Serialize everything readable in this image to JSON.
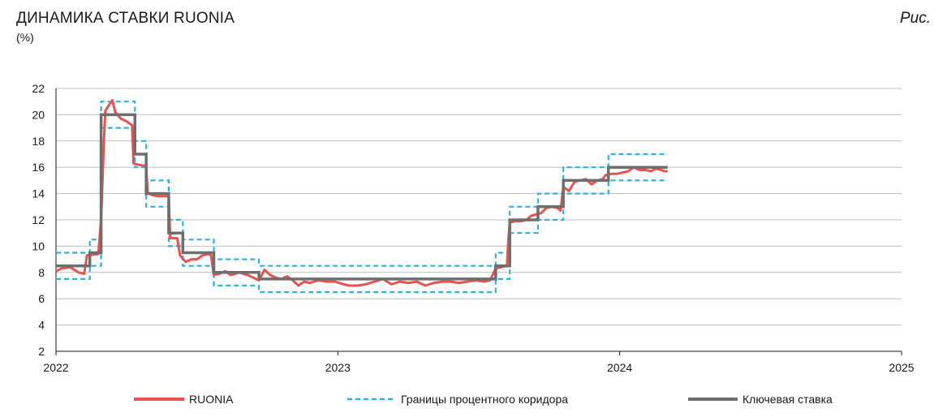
{
  "header": {
    "title": "ДИНАМИКА СТАВКИ RUONIA",
    "unit": "(%)",
    "figure_label": "Рис."
  },
  "chart_data": {
    "type": "line",
    "title": "ДИНАМИКА СТАВКИ RUONIA",
    "ylabel": "(%)",
    "xlabel": "",
    "xlim": [
      2022,
      2025
    ],
    "ylim": [
      2,
      22
    ],
    "x_ticks": [
      "2022",
      "2023",
      "2024",
      "2025"
    ],
    "y_ticks": [
      2,
      4,
      6,
      8,
      10,
      12,
      14,
      16,
      18,
      20,
      22
    ],
    "grid": "horizontal",
    "legend_position": "bottom",
    "series": [
      {
        "name": "RUONIA",
        "color": "#e8524f",
        "style": "solid",
        "points": [
          [
            2022.0,
            8.1
          ],
          [
            2022.02,
            8.3
          ],
          [
            2022.05,
            8.4
          ],
          [
            2022.08,
            8.0
          ],
          [
            2022.1,
            7.9
          ],
          [
            2022.11,
            9.3
          ],
          [
            2022.15,
            9.4
          ],
          [
            2022.16,
            12.0
          ],
          [
            2022.17,
            18.0
          ],
          [
            2022.175,
            20.3
          ],
          [
            2022.19,
            20.8
          ],
          [
            2022.2,
            21.1
          ],
          [
            2022.21,
            20.2
          ],
          [
            2022.23,
            19.7
          ],
          [
            2022.25,
            19.5
          ],
          [
            2022.27,
            19.2
          ],
          [
            2022.275,
            16.3
          ],
          [
            2022.29,
            16.2
          ],
          [
            2022.32,
            16.1
          ],
          [
            2022.325,
            14.1
          ],
          [
            2022.34,
            13.9
          ],
          [
            2022.36,
            13.8
          ],
          [
            2022.4,
            13.8
          ],
          [
            2022.405,
            10.6
          ],
          [
            2022.43,
            10.6
          ],
          [
            2022.44,
            9.3
          ],
          [
            2022.46,
            8.8
          ],
          [
            2022.48,
            9.0
          ],
          [
            2022.5,
            9.0
          ],
          [
            2022.52,
            9.3
          ],
          [
            2022.54,
            9.4
          ],
          [
            2022.55,
            9.3
          ],
          [
            2022.56,
            7.8
          ],
          [
            2022.58,
            7.9
          ],
          [
            2022.6,
            8.1
          ],
          [
            2022.62,
            7.8
          ],
          [
            2022.65,
            8.0
          ],
          [
            2022.68,
            7.8
          ],
          [
            2022.7,
            7.6
          ],
          [
            2022.72,
            7.4
          ],
          [
            2022.74,
            8.2
          ],
          [
            2022.76,
            7.8
          ],
          [
            2022.78,
            7.6
          ],
          [
            2022.8,
            7.5
          ],
          [
            2022.82,
            7.7
          ],
          [
            2022.84,
            7.4
          ],
          [
            2022.86,
            7.0
          ],
          [
            2022.88,
            7.3
          ],
          [
            2022.9,
            7.2
          ],
          [
            2022.93,
            7.4
          ],
          [
            2022.96,
            7.3
          ],
          [
            2022.99,
            7.3
          ],
          [
            2023.02,
            7.1
          ],
          [
            2023.04,
            7.0
          ],
          [
            2023.07,
            7.0
          ],
          [
            2023.1,
            7.1
          ],
          [
            2023.13,
            7.3
          ],
          [
            2023.16,
            7.5
          ],
          [
            2023.19,
            7.1
          ],
          [
            2023.22,
            7.3
          ],
          [
            2023.25,
            7.2
          ],
          [
            2023.28,
            7.3
          ],
          [
            2023.31,
            7.0
          ],
          [
            2023.34,
            7.2
          ],
          [
            2023.37,
            7.3
          ],
          [
            2023.4,
            7.3
          ],
          [
            2023.43,
            7.2
          ],
          [
            2023.46,
            7.3
          ],
          [
            2023.49,
            7.4
          ],
          [
            2023.52,
            7.3
          ],
          [
            2023.54,
            7.4
          ],
          [
            2023.56,
            8.3
          ],
          [
            2023.58,
            8.4
          ],
          [
            2023.6,
            8.5
          ],
          [
            2023.605,
            10.5
          ],
          [
            2023.61,
            11.8
          ],
          [
            2023.63,
            11.9
          ],
          [
            2023.65,
            11.9
          ],
          [
            2023.67,
            12.0
          ],
          [
            2023.685,
            12.3
          ],
          [
            2023.7,
            12.4
          ],
          [
            2023.72,
            12.5
          ],
          [
            2023.74,
            12.9
          ],
          [
            2023.76,
            13.0
          ],
          [
            2023.78,
            12.9
          ],
          [
            2023.79,
            12.7
          ],
          [
            2023.8,
            14.5
          ],
          [
            2023.82,
            14.2
          ],
          [
            2023.84,
            14.9
          ],
          [
            2023.86,
            15.0
          ],
          [
            2023.88,
            15.1
          ],
          [
            2023.9,
            14.7
          ],
          [
            2023.92,
            15.0
          ],
          [
            2023.94,
            15.1
          ],
          [
            2023.95,
            15.4
          ],
          [
            2023.97,
            15.5
          ],
          [
            2023.99,
            15.5
          ],
          [
            2024.01,
            15.6
          ],
          [
            2024.03,
            15.7
          ],
          [
            2024.05,
            16.0
          ],
          [
            2024.07,
            15.8
          ],
          [
            2024.09,
            15.8
          ],
          [
            2024.11,
            15.7
          ],
          [
            2024.13,
            15.9
          ],
          [
            2024.16,
            15.7
          ],
          [
            2024.17,
            15.7
          ]
        ]
      },
      {
        "name": "Границы процентного коридора",
        "color": "#29b4e6",
        "style": "dashed",
        "upper_steps": [
          [
            2022.0,
            9.5
          ],
          [
            2022.12,
            10.5
          ],
          [
            2022.16,
            21.0
          ],
          [
            2022.28,
            18.0
          ],
          [
            2022.32,
            15.0
          ],
          [
            2022.4,
            12.0
          ],
          [
            2022.45,
            10.5
          ],
          [
            2022.56,
            9.0
          ],
          [
            2022.72,
            8.5
          ],
          [
            2023.56,
            9.5
          ],
          [
            2023.61,
            13.0
          ],
          [
            2023.71,
            14.0
          ],
          [
            2023.8,
            16.0
          ],
          [
            2023.96,
            17.0
          ],
          [
            2024.17,
            17.0
          ]
        ],
        "lower_steps": [
          [
            2022.0,
            7.5
          ],
          [
            2022.12,
            8.5
          ],
          [
            2022.16,
            19.0
          ],
          [
            2022.28,
            16.0
          ],
          [
            2022.32,
            13.0
          ],
          [
            2022.4,
            10.0
          ],
          [
            2022.45,
            8.5
          ],
          [
            2022.56,
            7.0
          ],
          [
            2022.72,
            6.5
          ],
          [
            2023.56,
            7.5
          ],
          [
            2023.61,
            11.0
          ],
          [
            2023.71,
            12.0
          ],
          [
            2023.8,
            14.0
          ],
          [
            2023.96,
            15.0
          ],
          [
            2024.17,
            15.0
          ]
        ]
      },
      {
        "name": "Ключевая ставка",
        "color": "#6e6e6e",
        "style": "solid",
        "steps": [
          [
            2022.0,
            8.5
          ],
          [
            2022.12,
            9.5
          ],
          [
            2022.16,
            20.0
          ],
          [
            2022.28,
            17.0
          ],
          [
            2022.32,
            14.0
          ],
          [
            2022.4,
            11.0
          ],
          [
            2022.45,
            9.5
          ],
          [
            2022.56,
            8.0
          ],
          [
            2022.72,
            7.5
          ],
          [
            2023.56,
            8.5
          ],
          [
            2023.61,
            12.0
          ],
          [
            2023.71,
            13.0
          ],
          [
            2023.8,
            15.0
          ],
          [
            2023.96,
            16.0
          ],
          [
            2024.17,
            16.0
          ]
        ]
      }
    ]
  },
  "legend": {
    "ruonia": "RUONIA",
    "corridor": "Границы процентного коридора",
    "key_rate": "Ключевая ставка"
  }
}
